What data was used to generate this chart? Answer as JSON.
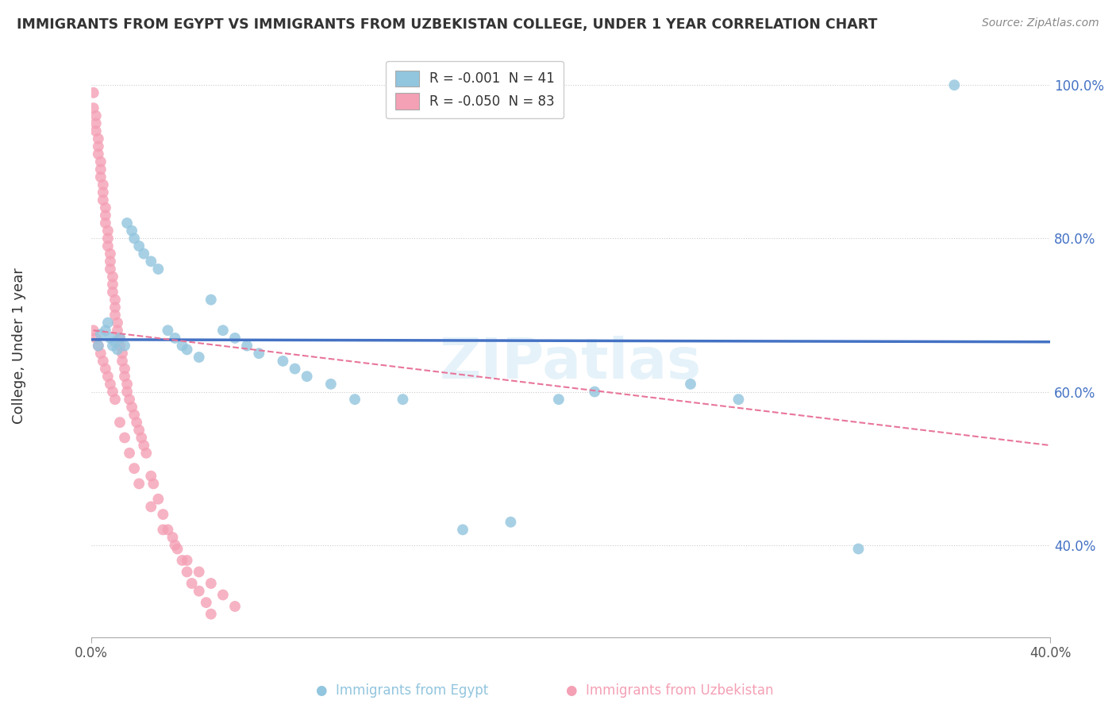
{
  "title": "IMMIGRANTS FROM EGYPT VS IMMIGRANTS FROM UZBEKISTAN COLLEGE, UNDER 1 YEAR CORRELATION CHART",
  "source": "Source: ZipAtlas.com",
  "ylabel": "College, Under 1 year",
  "xlim": [
    0.0,
    0.4
  ],
  "ylim": [
    0.28,
    1.04
  ],
  "ytick_vals": [
    0.4,
    0.6,
    0.8,
    1.0
  ],
  "ytick_labels": [
    "40.0%",
    "60.0%",
    "80.0%",
    "100.0%"
  ],
  "xtick_vals": [
    0.0,
    0.4
  ],
  "xtick_labels": [
    "0.0%",
    "40.0%"
  ],
  "legend_egypt": "R = -0.001  N = 41",
  "legend_uzbekistan": "R = -0.050  N = 83",
  "color_egypt": "#92C5DE",
  "color_uzbekistan": "#F4A0B5",
  "color_egypt_line": "#4472C4",
  "color_uzbekistan_line": "#E8769A",
  "watermark": "ZIPatlas",
  "egypt_x": [
    0.003,
    0.004,
    0.006,
    0.007,
    0.008,
    0.009,
    0.01,
    0.011,
    0.012,
    0.014,
    0.015,
    0.017,
    0.018,
    0.02,
    0.022,
    0.025,
    0.028,
    0.032,
    0.035,
    0.038,
    0.04,
    0.045,
    0.05,
    0.055,
    0.06,
    0.065,
    0.07,
    0.08,
    0.085,
    0.09,
    0.1,
    0.11,
    0.13,
    0.155,
    0.175,
    0.195,
    0.21,
    0.25,
    0.27,
    0.32,
    0.36
  ],
  "egypt_y": [
    0.66,
    0.675,
    0.68,
    0.69,
    0.67,
    0.66,
    0.665,
    0.655,
    0.67,
    0.66,
    0.82,
    0.81,
    0.8,
    0.79,
    0.78,
    0.77,
    0.76,
    0.68,
    0.67,
    0.66,
    0.655,
    0.645,
    0.72,
    0.68,
    0.67,
    0.66,
    0.65,
    0.64,
    0.63,
    0.62,
    0.61,
    0.59,
    0.59,
    0.42,
    0.43,
    0.59,
    0.6,
    0.61,
    0.59,
    0.395,
    1.0
  ],
  "uzbekistan_x": [
    0.001,
    0.001,
    0.002,
    0.002,
    0.002,
    0.003,
    0.003,
    0.003,
    0.004,
    0.004,
    0.004,
    0.005,
    0.005,
    0.005,
    0.006,
    0.006,
    0.006,
    0.007,
    0.007,
    0.007,
    0.008,
    0.008,
    0.008,
    0.009,
    0.009,
    0.009,
    0.01,
    0.01,
    0.01,
    0.011,
    0.011,
    0.012,
    0.012,
    0.013,
    0.013,
    0.014,
    0.014,
    0.015,
    0.015,
    0.016,
    0.017,
    0.018,
    0.019,
    0.02,
    0.021,
    0.022,
    0.023,
    0.025,
    0.026,
    0.028,
    0.03,
    0.032,
    0.034,
    0.036,
    0.038,
    0.04,
    0.042,
    0.045,
    0.048,
    0.05,
    0.001,
    0.002,
    0.003,
    0.004,
    0.005,
    0.006,
    0.007,
    0.008,
    0.009,
    0.01,
    0.012,
    0.014,
    0.016,
    0.018,
    0.02,
    0.025,
    0.03,
    0.035,
    0.04,
    0.045,
    0.05,
    0.055,
    0.06
  ],
  "uzbekistan_y": [
    0.99,
    0.97,
    0.96,
    0.95,
    0.94,
    0.93,
    0.92,
    0.91,
    0.9,
    0.89,
    0.88,
    0.87,
    0.86,
    0.85,
    0.84,
    0.83,
    0.82,
    0.81,
    0.8,
    0.79,
    0.78,
    0.77,
    0.76,
    0.75,
    0.74,
    0.73,
    0.72,
    0.71,
    0.7,
    0.69,
    0.68,
    0.67,
    0.66,
    0.65,
    0.64,
    0.63,
    0.62,
    0.61,
    0.6,
    0.59,
    0.58,
    0.57,
    0.56,
    0.55,
    0.54,
    0.53,
    0.52,
    0.49,
    0.48,
    0.46,
    0.44,
    0.42,
    0.41,
    0.395,
    0.38,
    0.365,
    0.35,
    0.34,
    0.325,
    0.31,
    0.68,
    0.67,
    0.66,
    0.65,
    0.64,
    0.63,
    0.62,
    0.61,
    0.6,
    0.59,
    0.56,
    0.54,
    0.52,
    0.5,
    0.48,
    0.45,
    0.42,
    0.4,
    0.38,
    0.365,
    0.35,
    0.335,
    0.32
  ],
  "egypt_trend_x": [
    0.0,
    0.4
  ],
  "egypt_trend_y": [
    0.668,
    0.665
  ],
  "uzbekistan_trend_x": [
    0.001,
    0.4
  ],
  "uzbekistan_trend_y": [
    0.68,
    0.53
  ]
}
